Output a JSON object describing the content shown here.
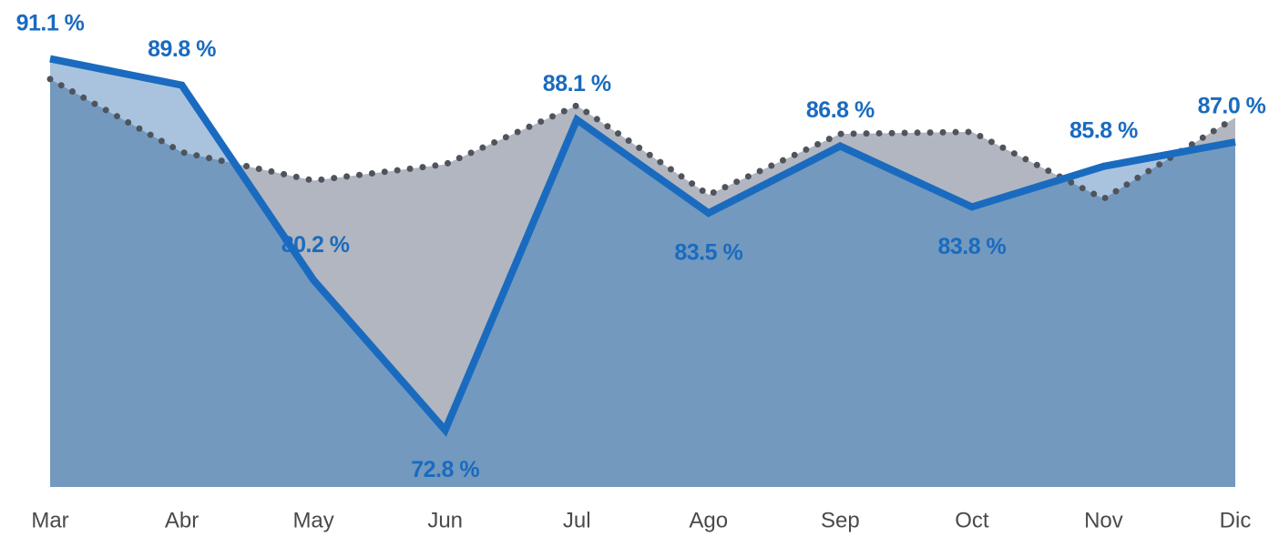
{
  "chart_data": {
    "type": "line",
    "categories": [
      "Mar",
      "Abr",
      "May",
      "Jun",
      "Jul",
      "Ago",
      "Sep",
      "Oct",
      "Nov",
      "Dic"
    ],
    "series": [
      {
        "color": "#1a6bbf",
        "area_color": "#a9c3df",
        "values": [
          91.1,
          89.8,
          80.2,
          72.8,
          88.1,
          83.5,
          86.8,
          83.8,
          85.8,
          87.0
        ],
        "value_labels": [
          "91.1 %",
          "89.8 %",
          "80.2 %",
          "72.8 %",
          "88.1 %",
          "83.5 %",
          "86.8 %",
          "83.8 %",
          "85.8 %",
          "87.0 %"
        ]
      },
      {
        "color": "#4f545c",
        "area_color": "#b1b6c0",
        "dotted": true,
        "values": [
          90.1,
          86.5,
          85.1,
          85.9,
          88.8,
          84.4,
          87.4,
          87.5,
          84.2,
          88.2
        ]
      }
    ],
    "overlap_color": "#7399bf",
    "ylim": [
      70,
      94
    ]
  }
}
